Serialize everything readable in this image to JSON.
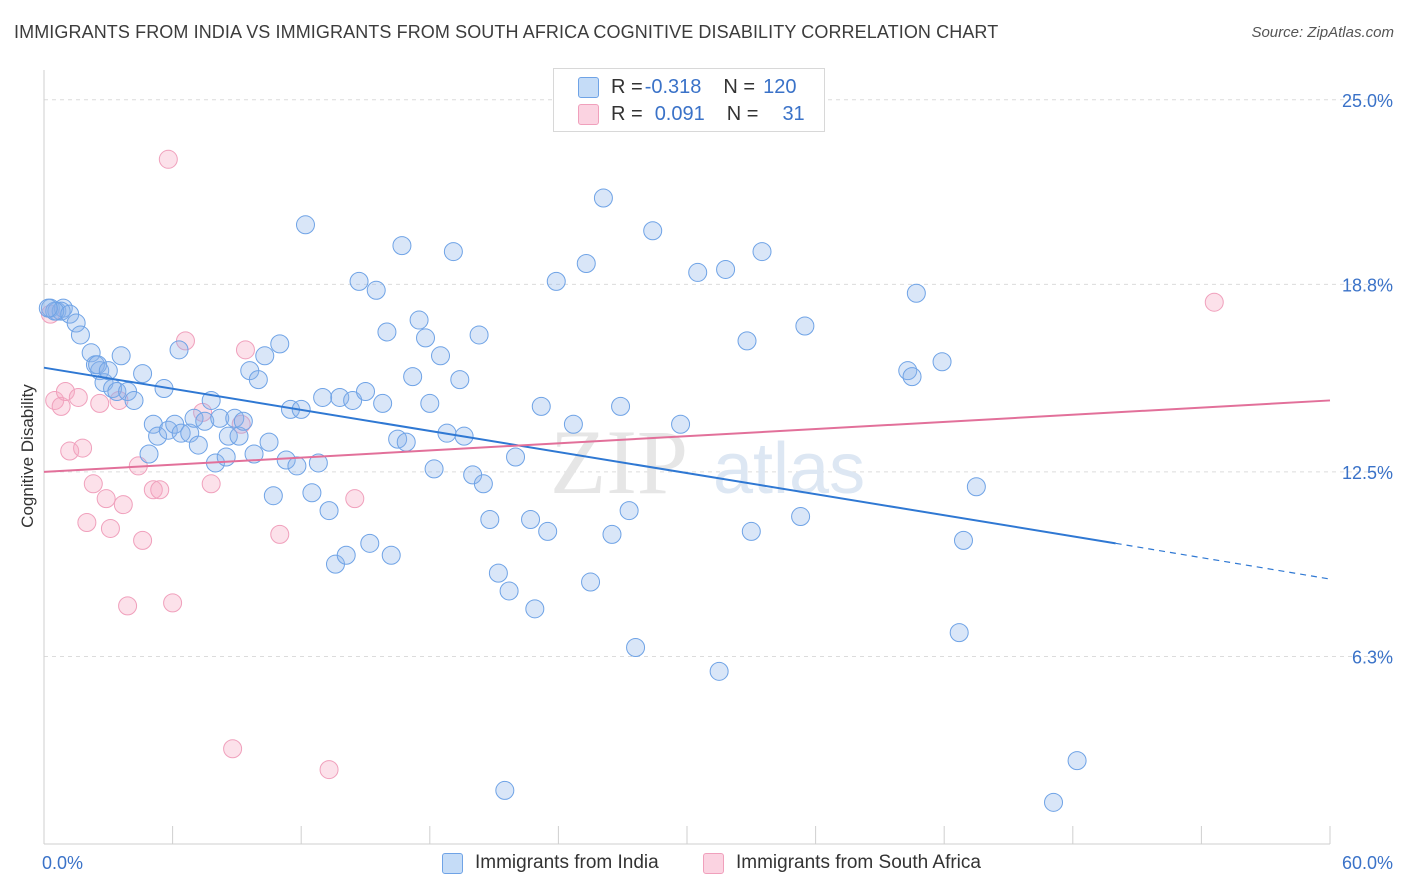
{
  "title": "IMMIGRANTS FROM INDIA VS IMMIGRANTS FROM SOUTH AFRICA COGNITIVE DISABILITY CORRELATION CHART",
  "source": "Source: ZipAtlas.com",
  "watermark": "ZIPatlas",
  "legend_stats": [
    {
      "r_label": "R = ",
      "r_value": "-0.318",
      "n_label": "N = ",
      "n_value": "120"
    },
    {
      "r_label": "R = ",
      "r_value": "0.091",
      "n_label": "N = ",
      "n_value": "31"
    }
  ],
  "chart_data": {
    "type": "scatter",
    "xlabel": "",
    "ylabel": "Cognitive Disability",
    "xlim": [
      0,
      60
    ],
    "ylim": [
      0,
      26
    ],
    "x_tick_labels": [
      "0.0%",
      "60.0%"
    ],
    "y_ticks": [
      6.3,
      12.5,
      18.8,
      25.0
    ],
    "y_tick_labels": [
      "6.3%",
      "12.5%",
      "18.8%",
      "25.0%"
    ],
    "grid": "horizontal-dashed",
    "legend_position": "bottom",
    "colors": {
      "india": "#6fa3e6",
      "south_africa": "#f0a0bc",
      "india_line": "#2f78d3",
      "south_africa_line": "#e2709a",
      "tick_text": "#3a72c8"
    },
    "series": [
      {
        "name": "Immigrants from India",
        "r": -0.318,
        "n": 120,
        "trend": {
          "x": [
            0,
            50
          ],
          "y": [
            16.0,
            10.1
          ],
          "dashed_to": [
            60,
            8.9
          ]
        },
        "points": [
          [
            0.3,
            18.0
          ],
          [
            0.6,
            17.9
          ],
          [
            0.9,
            18.0
          ],
          [
            0.8,
            17.9
          ],
          [
            0.5,
            17.9
          ],
          [
            0.2,
            18.0
          ],
          [
            1.2,
            17.8
          ],
          [
            1.5,
            17.5
          ],
          [
            1.7,
            17.1
          ],
          [
            2.2,
            16.5
          ],
          [
            2.4,
            16.1
          ],
          [
            2.6,
            15.9
          ],
          [
            2.5,
            16.1
          ],
          [
            2.8,
            15.5
          ],
          [
            3.0,
            15.9
          ],
          [
            3.2,
            15.3
          ],
          [
            3.6,
            16.4
          ],
          [
            3.4,
            15.2
          ],
          [
            3.9,
            15.2
          ],
          [
            4.2,
            14.9
          ],
          [
            4.6,
            15.8
          ],
          [
            4.9,
            13.1
          ],
          [
            5.1,
            14.1
          ],
          [
            5.3,
            13.7
          ],
          [
            5.6,
            15.3
          ],
          [
            5.8,
            13.9
          ],
          [
            6.1,
            14.1
          ],
          [
            6.3,
            16.6
          ],
          [
            6.4,
            13.8
          ],
          [
            6.8,
            13.8
          ],
          [
            7.0,
            14.3
          ],
          [
            7.2,
            13.4
          ],
          [
            7.5,
            14.2
          ],
          [
            7.8,
            14.9
          ],
          [
            8.0,
            12.8
          ],
          [
            8.2,
            14.3
          ],
          [
            8.5,
            13.0
          ],
          [
            8.6,
            13.7
          ],
          [
            8.9,
            14.3
          ],
          [
            9.1,
            13.7
          ],
          [
            9.3,
            14.2
          ],
          [
            9.6,
            15.9
          ],
          [
            9.8,
            13.1
          ],
          [
            10.0,
            15.6
          ],
          [
            10.3,
            16.4
          ],
          [
            10.5,
            13.5
          ],
          [
            10.7,
            11.7
          ],
          [
            11.0,
            16.8
          ],
          [
            11.3,
            12.9
          ],
          [
            11.5,
            14.6
          ],
          [
            11.8,
            12.7
          ],
          [
            12.0,
            14.6
          ],
          [
            12.2,
            20.8
          ],
          [
            12.5,
            11.8
          ],
          [
            12.8,
            12.8
          ],
          [
            13.0,
            15.0
          ],
          [
            13.3,
            11.2
          ],
          [
            13.6,
            9.4
          ],
          [
            13.8,
            15.0
          ],
          [
            14.1,
            9.7
          ],
          [
            14.4,
            14.9
          ],
          [
            14.7,
            18.9
          ],
          [
            15.0,
            15.2
          ],
          [
            15.2,
            10.1
          ],
          [
            15.5,
            18.6
          ],
          [
            15.8,
            14.8
          ],
          [
            16.0,
            17.2
          ],
          [
            16.2,
            9.7
          ],
          [
            16.5,
            13.6
          ],
          [
            16.7,
            20.1
          ],
          [
            16.9,
            13.5
          ],
          [
            17.2,
            15.7
          ],
          [
            17.5,
            17.6
          ],
          [
            17.8,
            17.0
          ],
          [
            18.0,
            14.8
          ],
          [
            18.2,
            12.6
          ],
          [
            18.5,
            16.4
          ],
          [
            18.8,
            13.8
          ],
          [
            19.1,
            19.9
          ],
          [
            19.4,
            15.6
          ],
          [
            19.6,
            13.7
          ],
          [
            20.0,
            12.4
          ],
          [
            20.3,
            17.1
          ],
          [
            20.5,
            12.1
          ],
          [
            20.8,
            10.9
          ],
          [
            21.2,
            9.1
          ],
          [
            21.5,
            1.8
          ],
          [
            21.7,
            8.5
          ],
          [
            22.0,
            13.0
          ],
          [
            22.7,
            10.9
          ],
          [
            22.9,
            7.9
          ],
          [
            23.2,
            14.7
          ],
          [
            23.5,
            10.5
          ],
          [
            23.9,
            18.9
          ],
          [
            24.7,
            14.1
          ],
          [
            25.3,
            19.5
          ],
          [
            25.5,
            8.8
          ],
          [
            26.1,
            21.7
          ],
          [
            26.5,
            10.4
          ],
          [
            26.9,
            14.7
          ],
          [
            27.3,
            11.2
          ],
          [
            27.6,
            6.6
          ],
          [
            28.4,
            20.6
          ],
          [
            29.7,
            14.1
          ],
          [
            30.5,
            19.2
          ],
          [
            31.5,
            5.8
          ],
          [
            31.8,
            19.3
          ],
          [
            32.8,
            16.9
          ],
          [
            33.0,
            10.5
          ],
          [
            33.5,
            19.9
          ],
          [
            35.3,
            11.0
          ],
          [
            35.5,
            17.4
          ],
          [
            40.3,
            15.9
          ],
          [
            40.5,
            15.7
          ],
          [
            40.7,
            18.5
          ],
          [
            41.9,
            16.2
          ],
          [
            42.7,
            7.1
          ],
          [
            42.9,
            10.2
          ],
          [
            43.5,
            12.0
          ],
          [
            47.1,
            1.4
          ],
          [
            48.2,
            2.8
          ]
        ]
      },
      {
        "name": "Immigrants from South Africa",
        "r": 0.091,
        "n": 31,
        "trend": {
          "x": [
            0,
            60
          ],
          "y": [
            12.5,
            14.9
          ]
        },
        "points": [
          [
            0.3,
            17.8
          ],
          [
            0.5,
            14.9
          ],
          [
            0.8,
            14.7
          ],
          [
            1.0,
            15.2
          ],
          [
            1.2,
            13.2
          ],
          [
            1.6,
            15.0
          ],
          [
            1.8,
            13.3
          ],
          [
            2.0,
            10.8
          ],
          [
            2.3,
            12.1
          ],
          [
            2.6,
            14.8
          ],
          [
            2.9,
            11.6
          ],
          [
            3.1,
            10.6
          ],
          [
            3.5,
            14.9
          ],
          [
            3.7,
            11.4
          ],
          [
            3.9,
            8.0
          ],
          [
            4.4,
            12.7
          ],
          [
            4.6,
            10.2
          ],
          [
            5.1,
            11.9
          ],
          [
            5.4,
            11.9
          ],
          [
            5.8,
            23.0
          ],
          [
            6.0,
            8.1
          ],
          [
            6.6,
            16.9
          ],
          [
            7.4,
            14.5
          ],
          [
            7.8,
            12.1
          ],
          [
            8.8,
            3.2
          ],
          [
            9.2,
            14.1
          ],
          [
            9.4,
            16.6
          ],
          [
            11.0,
            10.4
          ],
          [
            13.3,
            2.5
          ],
          [
            14.5,
            11.6
          ],
          [
            54.6,
            18.2
          ]
        ]
      }
    ]
  }
}
